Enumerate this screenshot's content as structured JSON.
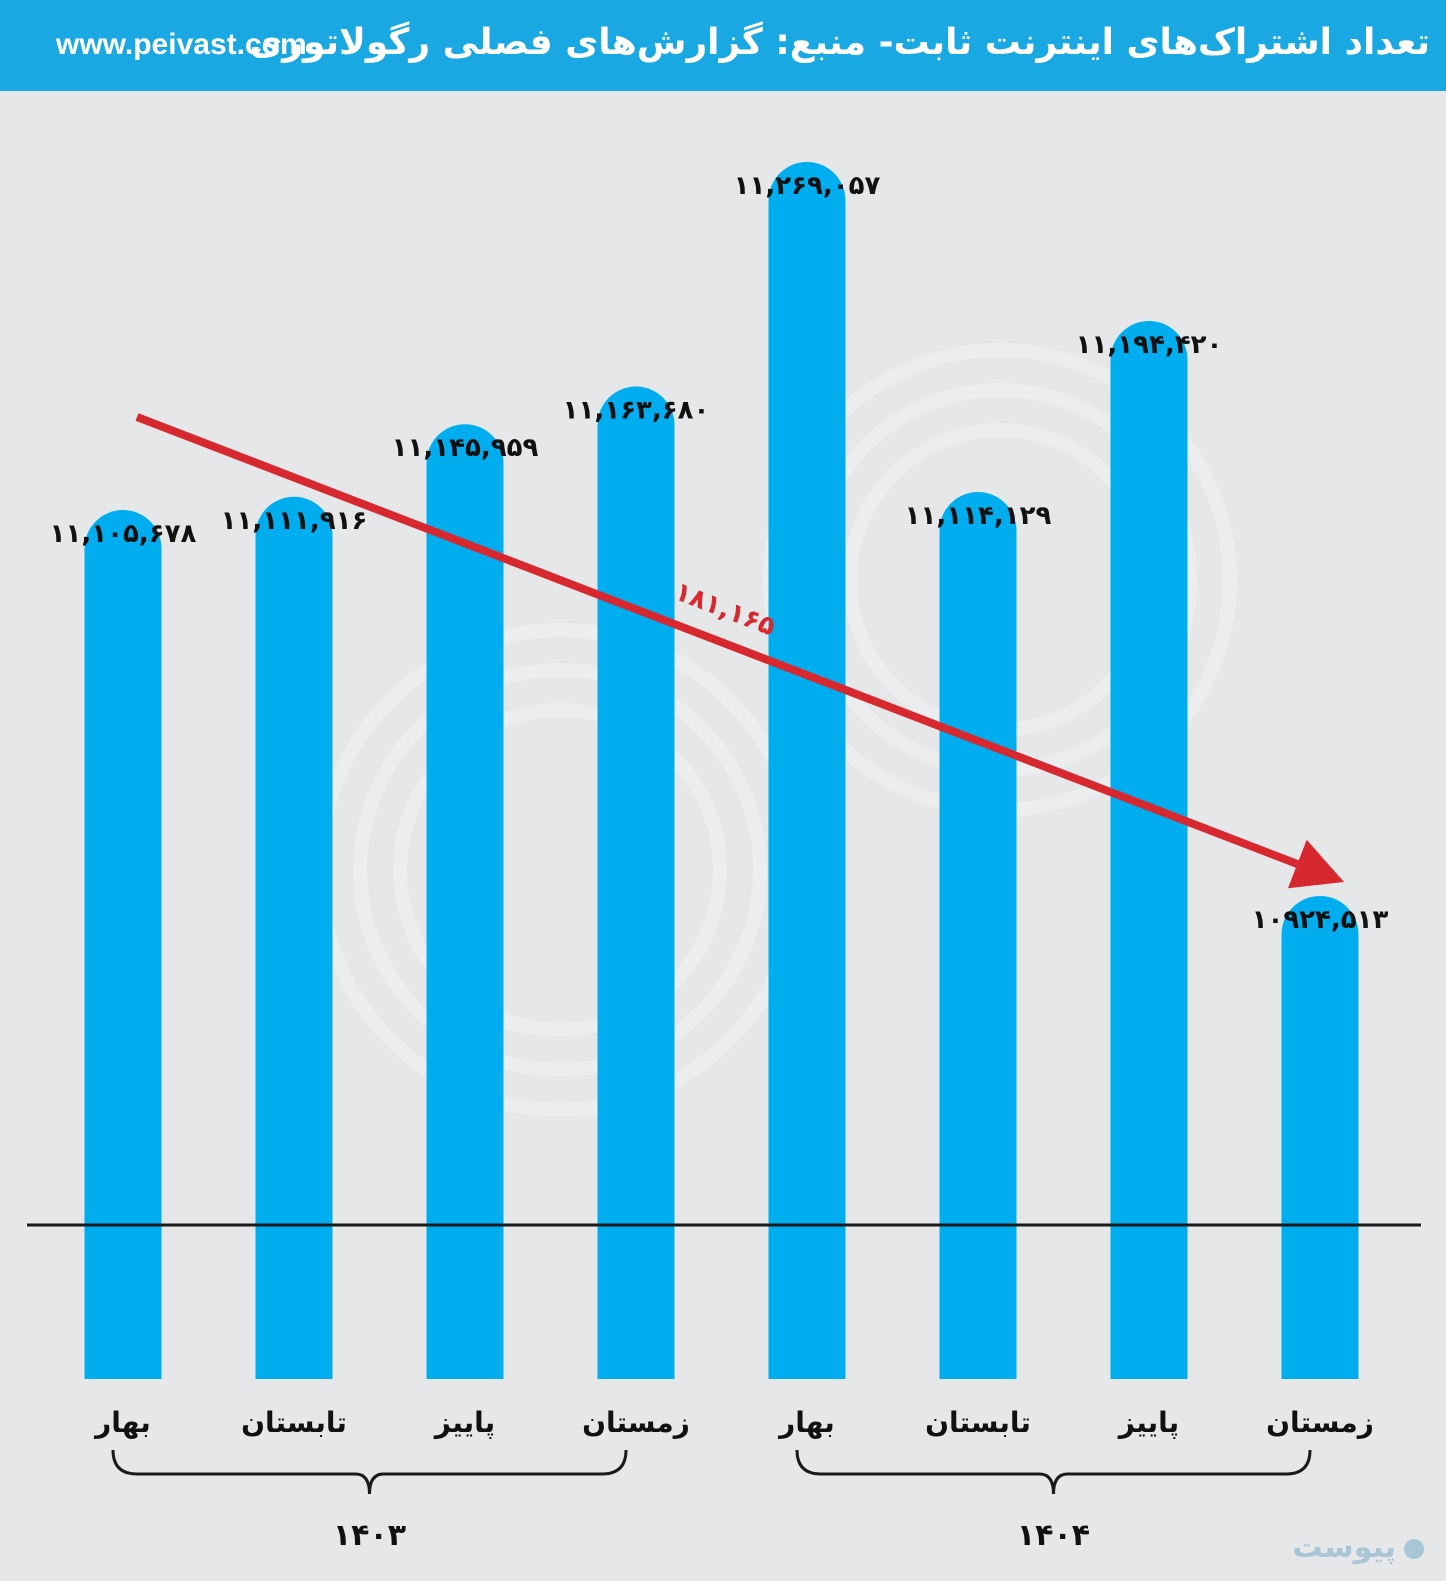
{
  "header": {
    "title": "تعداد اشتراک‌های اینترنت ثابت- منبع: گزارش‌های فصلی رگولاتوری",
    "site": "www.peivast.com"
  },
  "logo": {
    "text": "پیوست"
  },
  "colors": {
    "header_bg": "#1aa8e2",
    "bar": "#00aeef",
    "arrow": "#d8282f",
    "background": "#e6e7e9"
  },
  "chart_data": {
    "type": "bar",
    "title": "تعداد اشتراک‌های اینترنت ثابت- منبع: گزارش‌های فصلی رگولاتوری",
    "categories": [
      "بهار",
      "تابستان",
      "پاییز",
      "زمستان",
      "بهار",
      "تابستان",
      "پاییز",
      "زمستان"
    ],
    "values": [
      11105678,
      11111916,
      11145959,
      11163680,
      11269057,
      11114129,
      11194420,
      10924513
    ],
    "value_labels": [
      "۱۱,۱۰۵,۶۷۸",
      "۱۱,۱۱۱,۹۱۶",
      "۱۱,۱۴۵,۹۵۹",
      "۱۱,۱۶۳,۶۸۰",
      "۱۱,۲۶۹,۰۵۷",
      "۱۱,۱۱۴,۱۲۹",
      "۱۱,۱۹۴,۴۲۰",
      "۱۰۹۲۴,۵۱۳"
    ],
    "groups": [
      {
        "label": "۱۴۰۳",
        "from": 0,
        "to": 3
      },
      {
        "label": "۱۴۰۴",
        "from": 4,
        "to": 7
      }
    ],
    "trend_arrow": {
      "from_index": 0,
      "to_index": 7,
      "label": "۱۸۱,۱۶۵"
    },
    "grid": false,
    "legend": "none"
  }
}
